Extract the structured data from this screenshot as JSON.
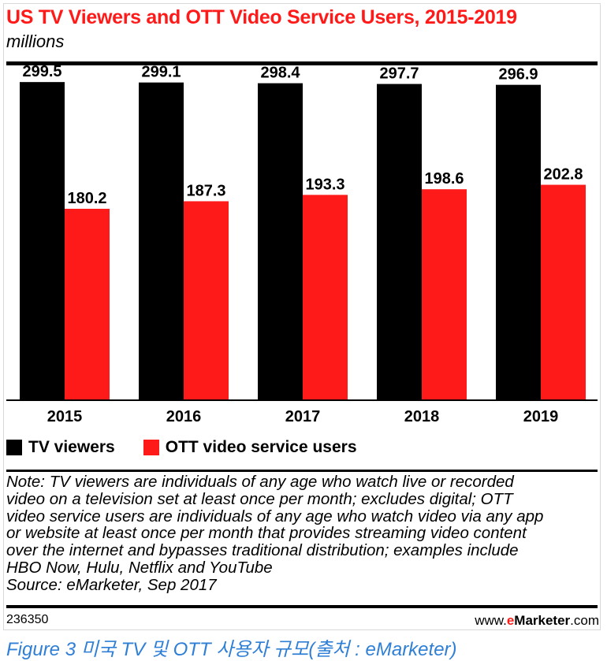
{
  "header": {
    "title": "US TV Viewers and OTT Video Service Users, 2015-2019",
    "subtitle": "millions"
  },
  "chart_data": {
    "type": "bar",
    "title": "US TV Viewers and OTT Video Service Users, 2015-2019",
    "subtitle": "millions",
    "categories": [
      "2015",
      "2016",
      "2017",
      "2018",
      "2019"
    ],
    "series": [
      {
        "name": "TV viewers",
        "color": "#000000",
        "values": [
          299.5,
          299.1,
          298.4,
          297.7,
          296.9
        ]
      },
      {
        "name": "OTT video service users",
        "color": "#ff1a1a",
        "values": [
          180.2,
          187.3,
          193.3,
          198.6,
          202.8
        ]
      }
    ],
    "xlabel": "",
    "ylabel": "",
    "ylim": [
      0,
      310
    ],
    "grid": false,
    "legend": "bottom"
  },
  "legend": {
    "items": [
      {
        "label": "TV viewers",
        "color": "#000000"
      },
      {
        "label": "OTT video service users",
        "color": "#ff1a1a"
      }
    ]
  },
  "note": {
    "lines": [
      "Note: TV viewers are individuals of any age who watch live or recorded",
      "video on a television set at least once per month; excludes digital; OTT",
      "video service users are individuals of any age who watch video via any app",
      "or website at least once per month that provides streaming video content",
      "over the internet and bypasses traditional distribution; examples include",
      "HBO Now, Hulu, Netflix and YouTube"
    ],
    "source": "Source: eMarketer, Sep 2017"
  },
  "footer": {
    "chart_id": "236350",
    "brand_prefix": "www.",
    "brand_e": "e",
    "brand_name": "Marketer",
    "brand_suffix": ".com"
  },
  "caption": "Figure 3 미국 TV 및 OTT 사용자 규모(출처 : eMarketer)",
  "colors": {
    "title": "#ff1a1a",
    "caption": "#2f7fd6"
  }
}
